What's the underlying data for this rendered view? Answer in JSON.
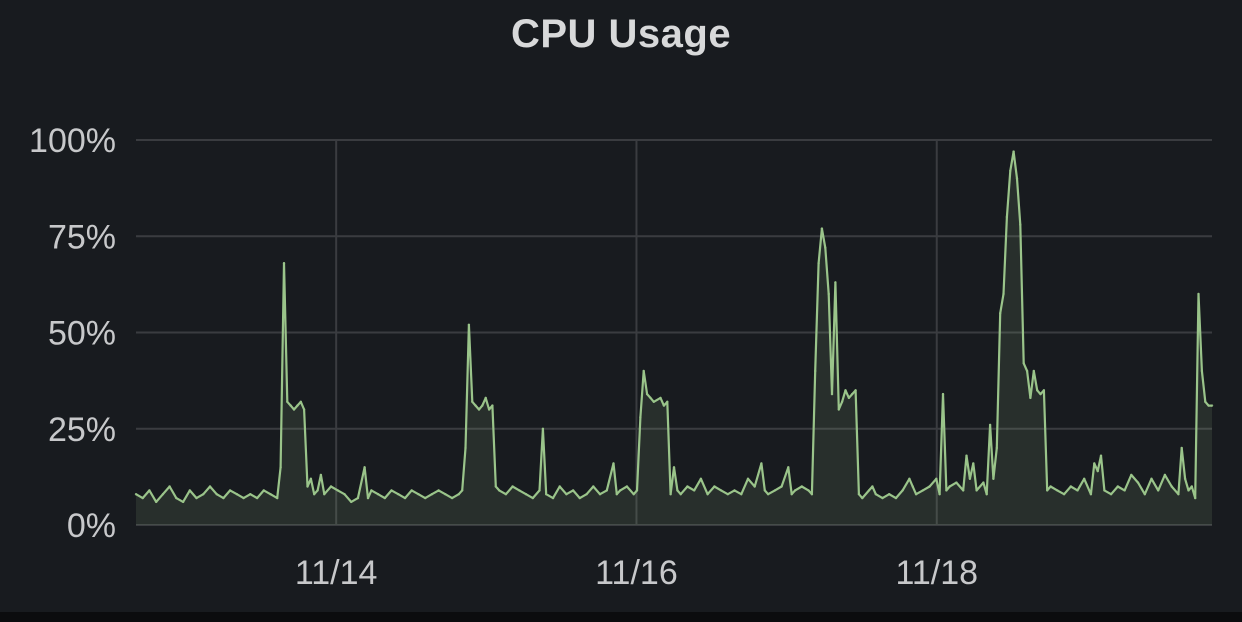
{
  "panel": {
    "title": "CPU Usage"
  },
  "colors": {
    "background": "#181b1f",
    "grid": "#3a3c40",
    "series": "#9ac48a",
    "fill": "#9ac48a",
    "text": "#c7c8ca"
  },
  "chart_data": {
    "type": "area",
    "title": "CPU Usage",
    "xlabel": "",
    "ylabel": "",
    "ylim": [
      0,
      100
    ],
    "y_unit": "%",
    "xlim": [
      "11/12 16:00",
      "11/19 20:00"
    ],
    "x_ticks": [
      "11/14",
      "11/16",
      "11/18"
    ],
    "y_ticks": [
      "0%",
      "25%",
      "50%",
      "75%",
      "100%"
    ],
    "grid": true,
    "legend": "none",
    "series": [
      {
        "values": [
          [
            0,
            8
          ],
          [
            2,
            7
          ],
          [
            4,
            9
          ],
          [
            6,
            6
          ],
          [
            8,
            8
          ],
          [
            10,
            10
          ],
          [
            12,
            7
          ],
          [
            14,
            6
          ],
          [
            16,
            9
          ],
          [
            18,
            7
          ],
          [
            20,
            8
          ],
          [
            22,
            10
          ],
          [
            24,
            8
          ],
          [
            26,
            7
          ],
          [
            28,
            9
          ],
          [
            30,
            8
          ],
          [
            32,
            7
          ],
          [
            34,
            8
          ],
          [
            36,
            7
          ],
          [
            38,
            9
          ],
          [
            40,
            8
          ],
          [
            42,
            7
          ],
          [
            43,
            15
          ],
          [
            44,
            68
          ],
          [
            45,
            32
          ],
          [
            46,
            31
          ],
          [
            47,
            30
          ],
          [
            48,
            31
          ],
          [
            49,
            32
          ],
          [
            50,
            30
          ],
          [
            51,
            10
          ],
          [
            52,
            12
          ],
          [
            53,
            8
          ],
          [
            54,
            9
          ],
          [
            55,
            13
          ],
          [
            56,
            8
          ],
          [
            58,
            10
          ],
          [
            60,
            9
          ],
          [
            62,
            8
          ],
          [
            64,
            6
          ],
          [
            66,
            7
          ],
          [
            68,
            15
          ],
          [
            69,
            7
          ],
          [
            70,
            9
          ],
          [
            72,
            8
          ],
          [
            74,
            7
          ],
          [
            76,
            9
          ],
          [
            78,
            8
          ],
          [
            80,
            7
          ],
          [
            82,
            9
          ],
          [
            84,
            8
          ],
          [
            86,
            7
          ],
          [
            88,
            8
          ],
          [
            90,
            9
          ],
          [
            92,
            8
          ],
          [
            94,
            7
          ],
          [
            96,
            8
          ],
          [
            97,
            9
          ],
          [
            98,
            20
          ],
          [
            99,
            52
          ],
          [
            100,
            32
          ],
          [
            101,
            31
          ],
          [
            102,
            30
          ],
          [
            103,
            31
          ],
          [
            104,
            33
          ],
          [
            105,
            30
          ],
          [
            106,
            31
          ],
          [
            107,
            10
          ],
          [
            108,
            9
          ],
          [
            110,
            8
          ],
          [
            112,
            10
          ],
          [
            114,
            9
          ],
          [
            116,
            8
          ],
          [
            118,
            7
          ],
          [
            120,
            9
          ],
          [
            121,
            25
          ],
          [
            122,
            8
          ],
          [
            124,
            7
          ],
          [
            126,
            10
          ],
          [
            128,
            8
          ],
          [
            130,
            9
          ],
          [
            132,
            7
          ],
          [
            134,
            8
          ],
          [
            136,
            10
          ],
          [
            138,
            8
          ],
          [
            140,
            9
          ],
          [
            142,
            16
          ],
          [
            143,
            8
          ],
          [
            144,
            9
          ],
          [
            146,
            10
          ],
          [
            148,
            8
          ],
          [
            149,
            9
          ],
          [
            150,
            28
          ],
          [
            151,
            40
          ],
          [
            152,
            34
          ],
          [
            153,
            33
          ],
          [
            154,
            32
          ],
          [
            156,
            33
          ],
          [
            157,
            31
          ],
          [
            158,
            32
          ],
          [
            159,
            8
          ],
          [
            160,
            15
          ],
          [
            161,
            9
          ],
          [
            162,
            8
          ],
          [
            164,
            10
          ],
          [
            166,
            9
          ],
          [
            168,
            12
          ],
          [
            170,
            8
          ],
          [
            172,
            10
          ],
          [
            174,
            9
          ],
          [
            176,
            8
          ],
          [
            178,
            9
          ],
          [
            180,
            8
          ],
          [
            182,
            12
          ],
          [
            184,
            10
          ],
          [
            186,
            16
          ],
          [
            187,
            9
          ],
          [
            188,
            8
          ],
          [
            190,
            9
          ],
          [
            192,
            10
          ],
          [
            194,
            15
          ],
          [
            195,
            8
          ],
          [
            196,
            9
          ],
          [
            198,
            10
          ],
          [
            200,
            9
          ],
          [
            201,
            8
          ],
          [
            202,
            40
          ],
          [
            203,
            68
          ],
          [
            204,
            77
          ],
          [
            205,
            72
          ],
          [
            206,
            60
          ],
          [
            207,
            34
          ],
          [
            208,
            63
          ],
          [
            209,
            30
          ],
          [
            210,
            32
          ],
          [
            211,
            35
          ],
          [
            212,
            33
          ],
          [
            213,
            34
          ],
          [
            214,
            35
          ],
          [
            215,
            8
          ],
          [
            216,
            7
          ],
          [
            218,
            9
          ],
          [
            219,
            10
          ],
          [
            220,
            8
          ],
          [
            222,
            7
          ],
          [
            224,
            8
          ],
          [
            226,
            7
          ],
          [
            228,
            9
          ],
          [
            230,
            12
          ],
          [
            231,
            10
          ],
          [
            232,
            8
          ],
          [
            234,
            9
          ],
          [
            236,
            10
          ],
          [
            238,
            12
          ],
          [
            239,
            8
          ],
          [
            240,
            34
          ],
          [
            241,
            9
          ],
          [
            242,
            10
          ],
          [
            244,
            11
          ],
          [
            246,
            9
          ],
          [
            247,
            18
          ],
          [
            248,
            12
          ],
          [
            249,
            16
          ],
          [
            250,
            9
          ],
          [
            252,
            11
          ],
          [
            253,
            8
          ],
          [
            254,
            26
          ],
          [
            255,
            12
          ],
          [
            256,
            20
          ],
          [
            257,
            55
          ],
          [
            258,
            60
          ],
          [
            259,
            80
          ],
          [
            260,
            92
          ],
          [
            261,
            97
          ],
          [
            262,
            90
          ],
          [
            263,
            78
          ],
          [
            264,
            42
          ],
          [
            265,
            40
          ],
          [
            266,
            33
          ],
          [
            267,
            40
          ],
          [
            268,
            35
          ],
          [
            269,
            34
          ],
          [
            270,
            35
          ],
          [
            271,
            9
          ],
          [
            272,
            10
          ],
          [
            274,
            9
          ],
          [
            276,
            8
          ],
          [
            278,
            10
          ],
          [
            280,
            9
          ],
          [
            282,
            12
          ],
          [
            284,
            8
          ],
          [
            285,
            16
          ],
          [
            286,
            14
          ],
          [
            287,
            18
          ],
          [
            288,
            9
          ],
          [
            290,
            8
          ],
          [
            292,
            10
          ],
          [
            294,
            9
          ],
          [
            296,
            13
          ],
          [
            298,
            11
          ],
          [
            300,
            8
          ],
          [
            302,
            12
          ],
          [
            304,
            9
          ],
          [
            306,
            13
          ],
          [
            308,
            10
          ],
          [
            310,
            8
          ],
          [
            311,
            20
          ],
          [
            312,
            12
          ],
          [
            313,
            9
          ],
          [
            314,
            10
          ],
          [
            315,
            7
          ],
          [
            316,
            60
          ],
          [
            317,
            40
          ],
          [
            318,
            32
          ],
          [
            319,
            31
          ],
          [
            320,
            31
          ]
        ]
      }
    ]
  }
}
